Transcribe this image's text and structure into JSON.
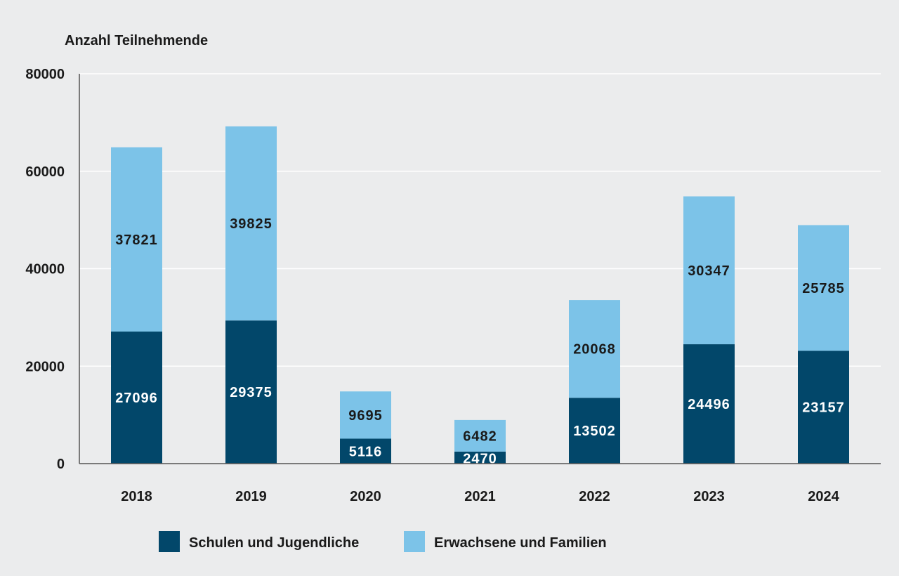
{
  "chart_data": {
    "type": "bar",
    "stacked": true,
    "ylabel": "Anzahl Teilnehmende",
    "xlabel": "",
    "ylim": [
      0,
      80000
    ],
    "yticks": [
      "0",
      "20000",
      "40000",
      "60000",
      "80000"
    ],
    "ytick_values": [
      0,
      20000,
      40000,
      60000,
      80000
    ],
    "grid": true,
    "legend_position": "bottom",
    "categories": [
      "2018",
      "2019",
      "2020",
      "2021",
      "2022",
      "2023",
      "2024"
    ],
    "series": [
      {
        "name": "Schulen und Jugendliche",
        "color": "#02476a",
        "values": [
          27096,
          29375,
          5116,
          2470,
          13502,
          24496,
          23157
        ]
      },
      {
        "name": "Erwachsene und Familien",
        "color": "#7cc3e8",
        "values": [
          37821,
          39825,
          9695,
          6482,
          20068,
          30347,
          25785
        ]
      }
    ]
  }
}
